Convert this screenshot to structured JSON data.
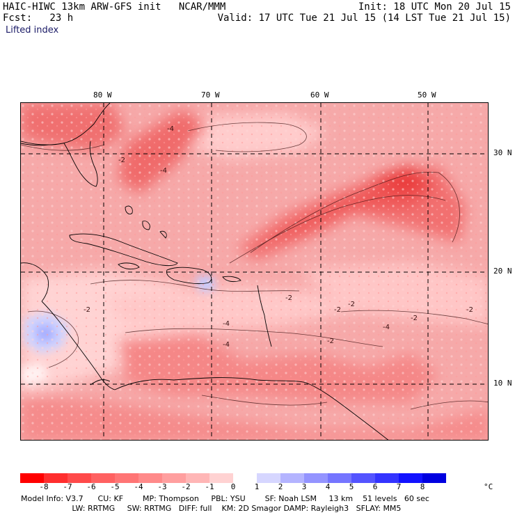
{
  "header": {
    "line1_left": "HAIC-HIWC 13km ARW-GFS init   NCAR/MMM",
    "line1_right": "Init: 18 UTC Mon 20 Jul 15",
    "line2_left": "Fcst:   23 h",
    "line2_right": "Valid: 17 UTC Tue 21 Jul 15 (14 LST Tue 21 Jul 15)",
    "field": "Lifted index"
  },
  "map": {
    "lon_labels": [
      "80 W",
      "70 W",
      "60 W",
      "50 W"
    ],
    "lat_labels": [
      "30 N",
      "20 N",
      "10 N"
    ],
    "contour_labels": [
      "-4",
      "-2",
      "-4",
      "-2",
      "-2",
      "-4",
      "-2",
      "-2",
      "-2",
      "-2",
      "-4",
      "-4",
      "-2"
    ]
  },
  "colorbar": {
    "ticks": [
      "-8",
      "-7",
      "-6",
      "-5",
      "-4",
      "-3",
      "-2",
      "-1",
      "0",
      "1",
      "2",
      "3",
      "4",
      "5",
      "6",
      "7",
      "8"
    ],
    "unit": "°C",
    "colors": [
      "#ff0000",
      "#ff2e2e",
      "#ff4a4a",
      "#ff6161",
      "#ff7575",
      "#ff8a8a",
      "#ff9f9f",
      "#ffb6b6",
      "#ffd2d2",
      "#ffffff",
      "#d6d6ff",
      "#b4b4ff",
      "#9494ff",
      "#7575ff",
      "#5454ff",
      "#3434ff",
      "#1212ff",
      "#0000e0"
    ]
  },
  "model_info": {
    "line1": "Model Info: V3.7      CU: KF        MP: Thompson     PBL: YSU        SF: Noah LSM     13 km    51 levels   60 sec",
    "line2": "                     LW: RRTMG     SW: RRTMG   DIFF: full    KM: 2D Smagor DAMP: Rayleigh3   SFLAY: MM5"
  }
}
